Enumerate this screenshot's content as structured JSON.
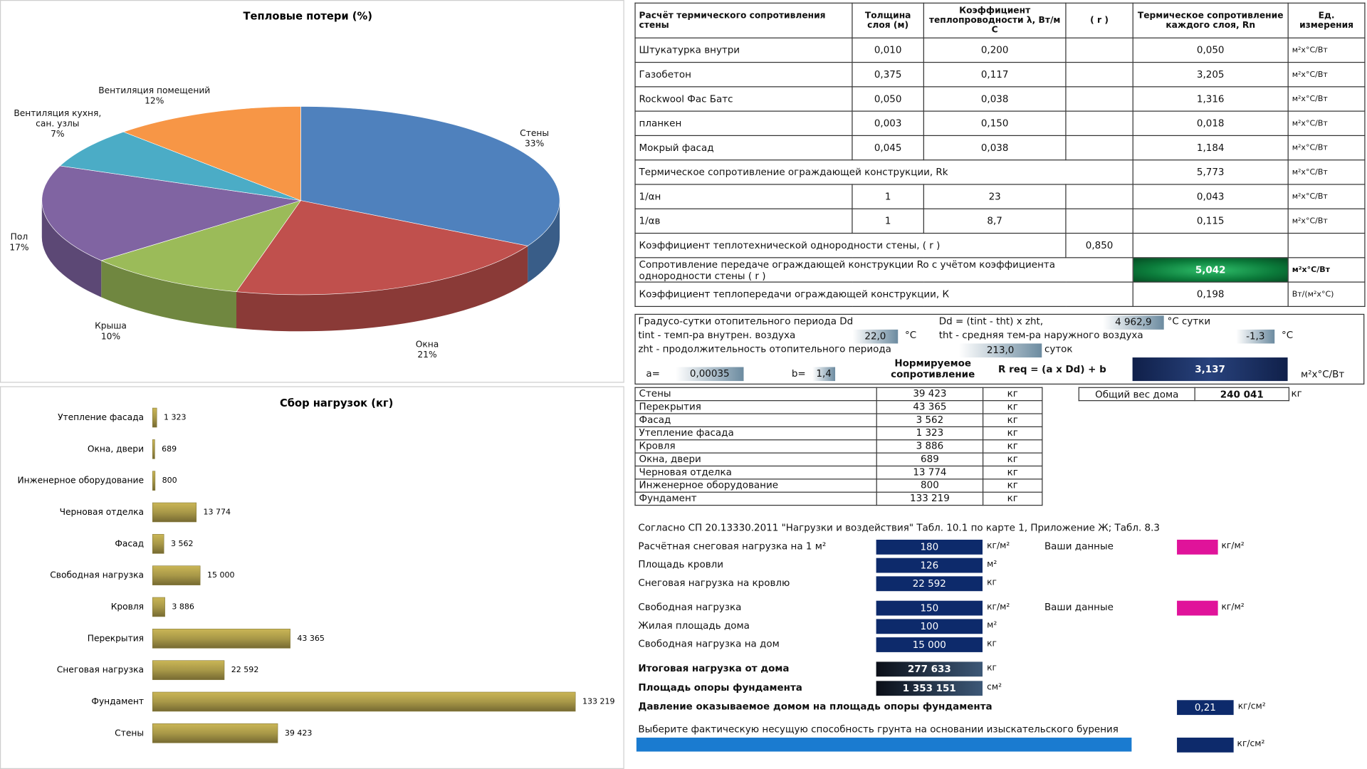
{
  "chart_data": [
    {
      "type": "pie",
      "title": "Тепловые потери (%)",
      "categories": [
        "Стены",
        "Окна",
        "Крыша",
        "Пол",
        "Вентиляция кухня, сан. узлы",
        "Вентиляция помещений"
      ],
      "values": [
        33,
        21,
        10,
        17,
        7,
        12
      ],
      "value_labels": [
        "33%",
        "21%",
        "10%",
        "17%",
        "7%",
        "12%"
      ],
      "colors": [
        "#4f81bd",
        "#c0504d",
        "#9bbb59",
        "#8064a2",
        "#4bacc6",
        "#f79646"
      ]
    },
    {
      "type": "bar",
      "orientation": "horizontal",
      "title": "Сбор нагрузок (кг)",
      "categories": [
        "Утепление фасада",
        "Окна, двери",
        "Инженерное оборудование",
        "Черновая отделка",
        "Фасад",
        "Свободная нагрузка",
        "Кровля",
        "Перекрытия",
        "Снеговая нагрузка",
        "Фундамент",
        "Стены"
      ],
      "values": [
        1323,
        689,
        800,
        13774,
        3562,
        15000,
        3886,
        43365,
        22592,
        133219,
        39423
      ],
      "value_labels": [
        "1 323",
        "689",
        "800",
        "13 774",
        "3 562",
        "15 000",
        "3 886",
        "43 365",
        "22 592",
        "133 219",
        "39 423"
      ],
      "color": "#a89848"
    }
  ],
  "thermal_table": {
    "header": [
      "Расчёт термического сопротивления стены",
      "Толщина слоя (м)",
      "Коэффициент теплопроводности λ, Вт/м С",
      "( r )",
      "Термическое сопротивление каждого слоя, Rn",
      "Ед. измерения"
    ],
    "rows": [
      [
        "Штукатурка внутри",
        "0,010",
        "0,200",
        "0,050",
        "м²х°С/Вт"
      ],
      [
        "Газобетон",
        "0,375",
        "0,117",
        "3,205",
        "м²х°С/Вт"
      ],
      [
        "Rockwool Фас Батс",
        "0,050",
        "0,038",
        "1,316",
        "м²х°С/Вт"
      ],
      [
        "планкен",
        "0,003",
        "0,150",
        "0,018",
        "м²х°С/Вт"
      ],
      [
        "Мокрый фасад",
        "0,045",
        "0,038",
        "1,184",
        "м²х°С/Вт"
      ],
      [
        "Термическое сопротивление ограждающей конструкции, Rk",
        "5,773",
        "м²х°С/Вт"
      ],
      [
        "1/αн",
        "1",
        "23",
        "0,043",
        "м²х°С/Вт"
      ],
      [
        "1/αв",
        "1",
        "8,7",
        "0,115",
        "м²х°С/Вт"
      ],
      [
        "Коэффициент теплотехнической однородности стены, ( r )",
        "0,850"
      ],
      [
        "Сопротивление передаче ограждающей конструкции Ro с учётом коэффициента однородности стены ( r )",
        "5,042",
        "м²х°С/Вт"
      ],
      [
        "Коэффициент теплопередачи ограждающей конструкции, К",
        "0,198",
        "Вт/(м²х°С)"
      ]
    ]
  },
  "degree_days": {
    "dd_label": "Градусо-сутки отопительного периода Dd",
    "dd_formula": "Dd = (tint - tht) x zht,",
    "dd_value": "4 962,9",
    "dd_unit": "°С сутки",
    "tint_label": "tint - темп-ра внутрен. воздуха",
    "tint_value": "22,0",
    "tint_unit": "°С",
    "tht_label": "tht - средняя тем-ра наружного воздуха",
    "tht_value": "-1,3",
    "tht_unit": "°С",
    "zht_label": "zht - продолжительность отопительного периода",
    "zht_value": "213,0",
    "zht_unit": "суток",
    "a_label": "a=",
    "a_value": "0,00035",
    "b_label": "b=",
    "b_value": "1,4",
    "rreq_title": "Нормируемое сопротивление",
    "rreq_formula": "R req = (a x Dd) + b",
    "rreq_value": "3,137",
    "rreq_unit": "м²х°С/Вт"
  },
  "weights": {
    "rows": [
      [
        "Стены",
        "39 423",
        "кг"
      ],
      [
        "Перекрытия",
        "43 365",
        "кг"
      ],
      [
        "Фасад",
        "3 562",
        "кг"
      ],
      [
        "Утепление фасада",
        "1 323",
        "кг"
      ],
      [
        "Кровля",
        "3 886",
        "кг"
      ],
      [
        "Окна, двери",
        "689",
        "кг"
      ],
      [
        "Черновая отделка",
        "13 774",
        "кг"
      ],
      [
        "Инженерное оборудование",
        "800",
        "кг"
      ],
      [
        "Фундамент",
        "133 219",
        "кг"
      ]
    ],
    "total_label": "Общий вес дома",
    "total_value": "240 041",
    "total_unit": "кг"
  },
  "loads": {
    "note": "Согласно СП 20.13330.2011 \"Нагрузки и воздействия\"  Табл. 10.1 по карте 1, Приложение Ж; Табл. 8.3",
    "rows": [
      {
        "label": "Расчётная снеговая нагрузка на 1 м²",
        "value": "180",
        "unit": "кг/м²",
        "your_label": "Ваши данные",
        "your_unit": "кг/м²"
      },
      {
        "label": "Площадь кровли",
        "value": "126",
        "unit": "м²"
      },
      {
        "label": "Снеговая нагрузка на кровлю",
        "value": "22 592",
        "unit": "кг"
      },
      {
        "label": "Свободная нагрузка",
        "value": "150",
        "unit": "кг/м²",
        "your_label": "Ваши данные",
        "your_unit": "кг/м²"
      },
      {
        "label": "Жилая площадь дома",
        "value": "100",
        "unit": "м²"
      },
      {
        "label": "Свободная нагрузка на дом",
        "value": "15 000",
        "unit": "кг"
      },
      {
        "label": "Итоговая нагрузка от дома",
        "value": "277 633",
        "unit": "кг"
      },
      {
        "label": "Площадь опоры фундамента",
        "value": "1 353 151",
        "unit": "см²"
      },
      {
        "label": "Давление оказываемое домом на площадь опоры фундамента",
        "value": "0,21",
        "unit": "кг/см²"
      }
    ],
    "choose_label": "Выберите фактическую несущую способность грунта на основании изыскательского бурения",
    "choose_unit": "кг/см²"
  }
}
